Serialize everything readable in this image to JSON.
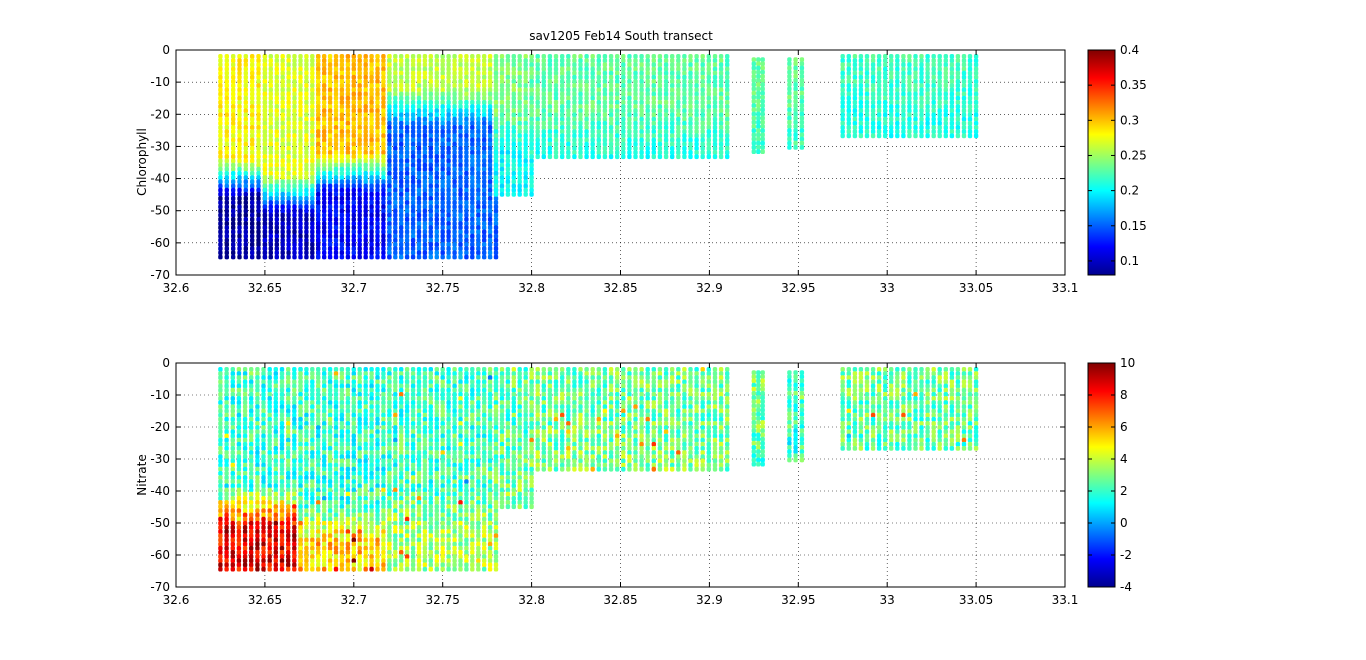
{
  "chart_data": [
    {
      "type": "scatter",
      "title": "sav1205 Feb14 South transect",
      "ylabel": "Chlorophyll",
      "xlabel": "",
      "xlim": [
        32.6,
        33.1
      ],
      "ylim": [
        -70,
        0
      ],
      "xticks": [
        "32.6",
        "32.65",
        "32.7",
        "32.75",
        "32.8",
        "32.85",
        "32.9",
        "32.95",
        "33",
        "33.05",
        "33.1"
      ],
      "yticks": [
        "0",
        "-10",
        "-20",
        "-30",
        "-40",
        "-50",
        "-60",
        "-70"
      ],
      "grid": true,
      "colormap": "jet",
      "clim": [
        0.08,
        0.4
      ],
      "colorbar_ticks": [
        "0.4",
        "0.35",
        "0.3",
        "0.25",
        "0.2",
        "0.15",
        "0.1"
      ],
      "sections": [
        {
          "x": [
            32.625,
            32.65
          ],
          "depth": [
            -2,
            -65
          ],
          "surface": 0.28,
          "deep": 0.09,
          "transition_depth": -40
        },
        {
          "x": [
            32.65,
            32.68
          ],
          "depth": [
            -2,
            -65
          ],
          "surface": 0.27,
          "deep": 0.1,
          "transition_depth": -45
        },
        {
          "x": [
            32.68,
            32.72
          ],
          "depth": [
            -2,
            -65
          ],
          "surface": 0.3,
          "deep": 0.12,
          "transition_depth": -38
        },
        {
          "x": [
            32.72,
            32.78
          ],
          "depth": [
            -2,
            -65
          ],
          "surface": 0.26,
          "deep": 0.15,
          "transition_depth": -18
        },
        {
          "x": [
            32.78,
            32.8
          ],
          "depth": [
            -2,
            -45
          ],
          "surface": 0.24,
          "deep": 0.2,
          "transition_depth": -25
        },
        {
          "x": [
            32.8,
            32.91
          ],
          "depth": [
            -2,
            -34
          ],
          "surface": 0.23,
          "deep": 0.21,
          "transition_depth": -25
        },
        {
          "x": [
            32.925,
            32.93
          ],
          "depth": [
            -3,
            -32
          ],
          "surface": 0.23,
          "deep": 0.22,
          "transition_depth": -20
        },
        {
          "x": [
            32.945,
            32.952
          ],
          "depth": [
            -3,
            -31
          ],
          "surface": 0.23,
          "deep": 0.22,
          "transition_depth": -20
        },
        {
          "x": [
            32.975,
            33.05
          ],
          "depth": [
            -2,
            -27
          ],
          "surface": 0.22,
          "deep": 0.21,
          "transition_depth": -15
        }
      ]
    },
    {
      "type": "scatter",
      "title": "",
      "ylabel": "Nitrate",
      "xlabel": "",
      "xlim": [
        32.6,
        33.1
      ],
      "ylim": [
        -70,
        0
      ],
      "xticks": [
        "32.6",
        "32.65",
        "32.7",
        "32.75",
        "32.8",
        "32.85",
        "32.9",
        "32.95",
        "33",
        "33.05",
        "33.1"
      ],
      "yticks": [
        "0",
        "-10",
        "-20",
        "-30",
        "-40",
        "-50",
        "-60",
        "-70"
      ],
      "grid": true,
      "colormap": "jet",
      "clim": [
        -4,
        10
      ],
      "colorbar_ticks": [
        "10",
        "8",
        "6",
        "4",
        "2",
        "0",
        "-2",
        "-4"
      ],
      "sections": [
        {
          "x": [
            32.625,
            32.67
          ],
          "depth": [
            -2,
            -65
          ],
          "surface": 2.0,
          "deep": 8.5,
          "transition_depth": -45
        },
        {
          "x": [
            32.67,
            32.72
          ],
          "depth": [
            -2,
            -65
          ],
          "surface": 2.0,
          "deep": 5.5,
          "transition_depth": -50
        },
        {
          "x": [
            32.72,
            32.78
          ],
          "depth": [
            -2,
            -65
          ],
          "surface": 2.2,
          "deep": 3.5,
          "transition_depth": -45
        },
        {
          "x": [
            32.78,
            32.8
          ],
          "depth": [
            -2,
            -45
          ],
          "surface": 2.5,
          "deep": 3.0,
          "transition_depth": -30
        },
        {
          "x": [
            32.8,
            32.91
          ],
          "depth": [
            -2,
            -34
          ],
          "surface": 2.8,
          "deep": 3.0,
          "transition_depth": -25
        },
        {
          "x": [
            32.925,
            32.93
          ],
          "depth": [
            -3,
            -32
          ],
          "surface": 3.0,
          "deep": 2.5,
          "transition_depth": -20
        },
        {
          "x": [
            32.945,
            32.952
          ],
          "depth": [
            -3,
            -31
          ],
          "surface": 2.5,
          "deep": 2.0,
          "transition_depth": -20
        },
        {
          "x": [
            32.975,
            33.05
          ],
          "depth": [
            -2,
            -27
          ],
          "surface": 2.8,
          "deep": 2.6,
          "transition_depth": -15
        }
      ]
    }
  ]
}
